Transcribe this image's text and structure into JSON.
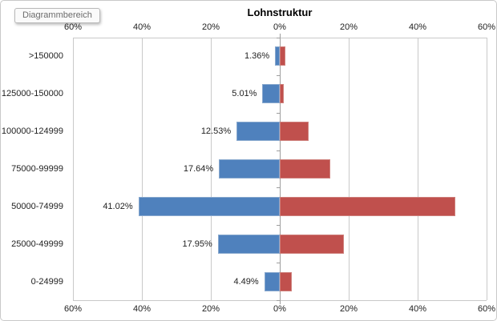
{
  "chart_area": {
    "tooltip": "Diagrammbereich"
  },
  "chart_data": {
    "type": "bar",
    "variant": "horizontal butterfly / tornado, dual mirrored value axes",
    "title": "Lohnstruktur",
    "categories": [
      ">150000",
      "125000-150000",
      "100000-124999",
      "75000-99999",
      "50000-74999",
      "25000-49999",
      "0-24999"
    ],
    "series": [
      {
        "name": "left",
        "color": "#4F81BD",
        "border_color": "#89A9CE",
        "direction": "left",
        "values": [
          1.36,
          5.01,
          12.53,
          17.64,
          41.02,
          17.95,
          4.49
        ],
        "data_labels": [
          "1.36%",
          "5.01%",
          "12.53%",
          "17.64%",
          "41.02%",
          "17.95%",
          "4.49%"
        ]
      },
      {
        "name": "right",
        "color": "#C0504D",
        "border_color": "#CE7F7B",
        "direction": "right",
        "values": [
          1.6,
          1.1,
          8.4,
          14.7,
          50.9,
          18.6,
          3.5
        ],
        "data_labels": []
      }
    ],
    "axes": {
      "top_ticks": [
        "60%",
        "40%",
        "20%",
        "0%",
        "20%",
        "40%",
        "60%"
      ],
      "bottom_ticks": [
        "60%",
        "40%",
        "20%",
        "0%",
        "20%",
        "40%",
        "60%"
      ],
      "value_axis_max_percent": 60,
      "tick_step_percent": 20,
      "gridlines": true,
      "legend": "none"
    },
    "colors": {
      "grid": "#c9c9c9",
      "axis_line": "#9e9e9e",
      "background": "#ffffff"
    }
  }
}
